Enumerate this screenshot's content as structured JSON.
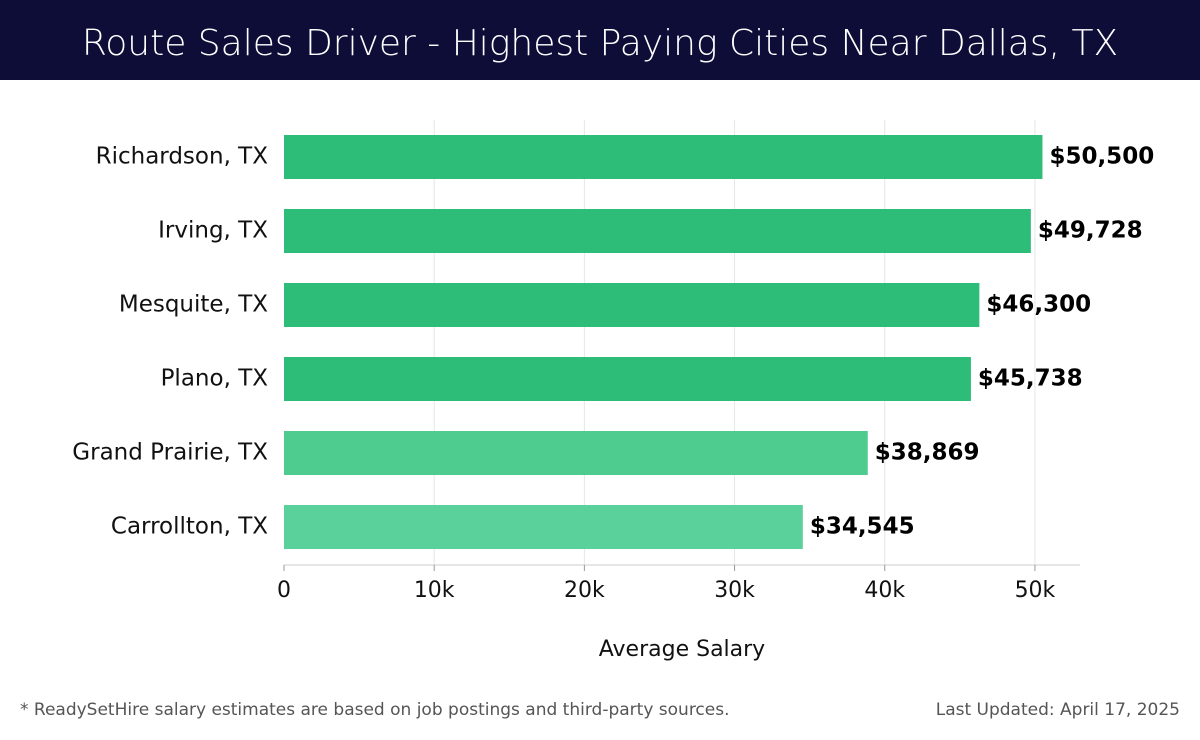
{
  "header": {
    "title": "Route Sales Driver - Highest Paying Cities Near Dallas, TX"
  },
  "chart_data": {
    "type": "bar",
    "orientation": "horizontal",
    "title": "Route Sales Driver - Highest Paying Cities Near Dallas, TX",
    "xlabel": "Average Salary",
    "ylabel": "",
    "categories": [
      "Richardson, TX",
      "Irving, TX",
      "Mesquite, TX",
      "Plano, TX",
      "Grand Prairie, TX",
      "Carrollton, TX"
    ],
    "values": [
      50500,
      49728,
      46300,
      45738,
      38869,
      34545
    ],
    "value_labels": [
      "$50,500",
      "$49,728",
      "$46,300",
      "$45,738",
      "$38,869",
      "$34,545"
    ],
    "bar_colors": [
      "#2ebd78",
      "#2ebd78",
      "#2ebd78",
      "#2ebd78",
      "#4ecb8f",
      "#5ad09a"
    ],
    "xlim": [
      0,
      53000
    ],
    "x_ticks": [
      0,
      10000,
      20000,
      30000,
      40000,
      50000
    ],
    "x_tick_labels": [
      "0",
      "10k",
      "20k",
      "30k",
      "40k",
      "50k"
    ],
    "grid": true
  },
  "footer": {
    "note": "* ReadySetHire salary estimates are based on job postings and third-party sources.",
    "updated": "Last Updated: April 17, 2025"
  }
}
